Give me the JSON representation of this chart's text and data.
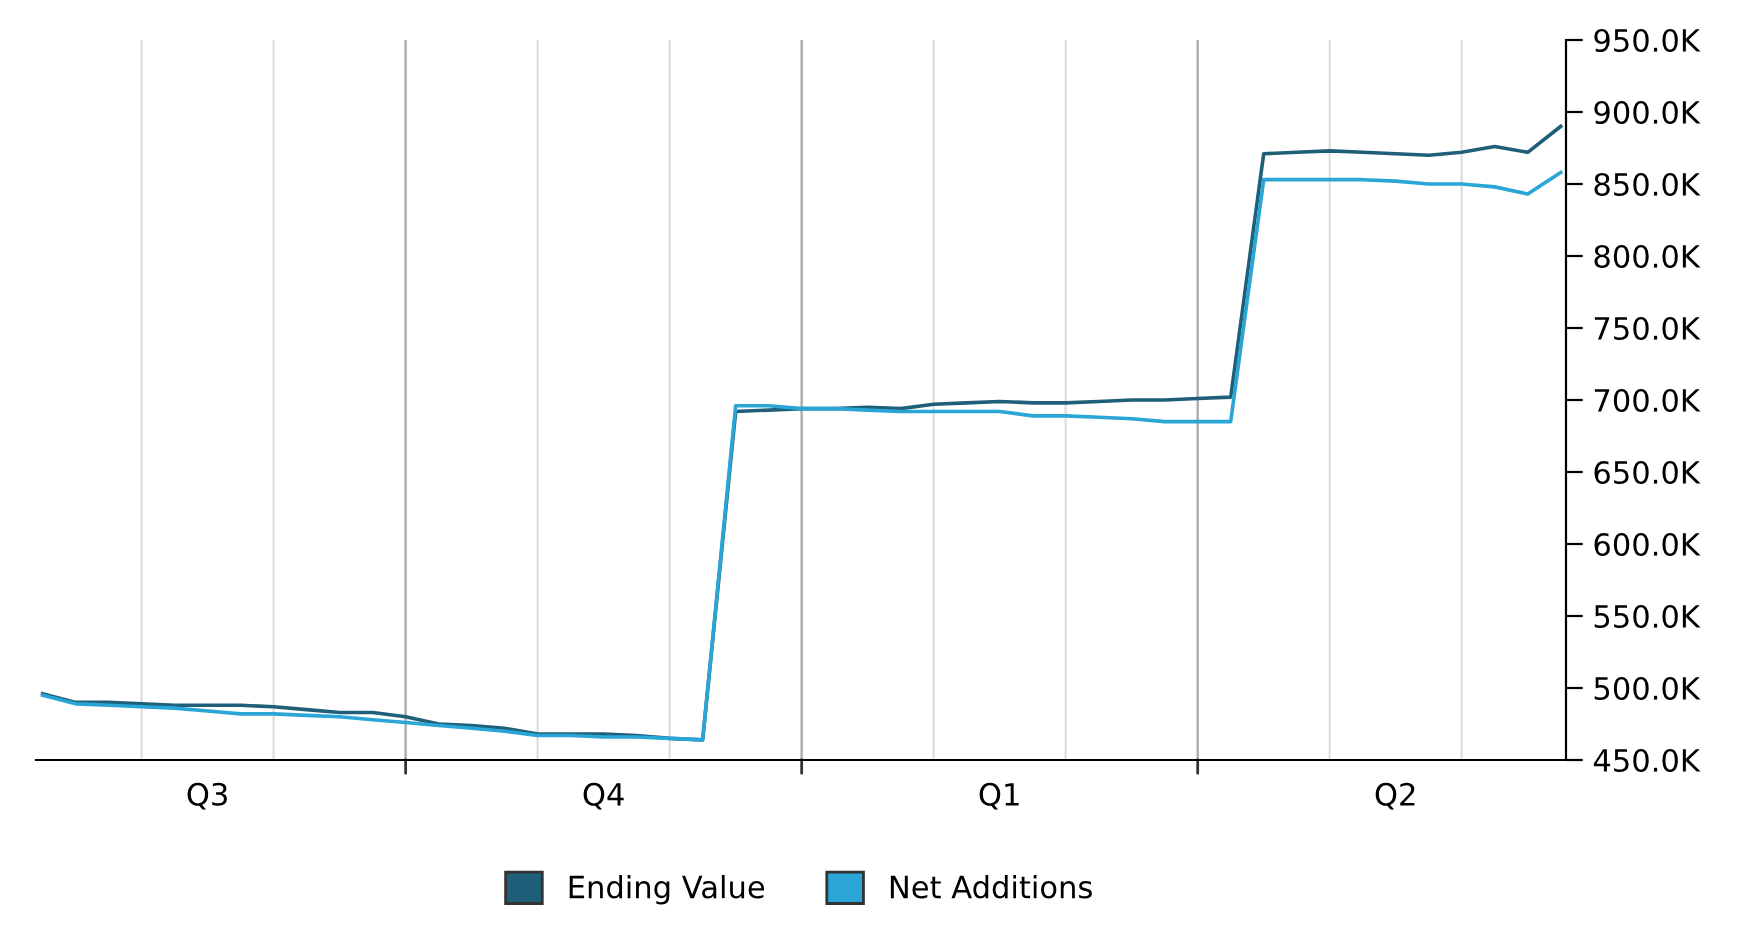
{
  "chart_data": {
    "type": "line",
    "legend": "bottom",
    "grid": "x",
    "marker": "none",
    "line_style": "solid",
    "categories": [
      null,
      null,
      null,
      null,
      null,
      "Q3",
      null,
      null,
      null,
      null,
      null,
      null,
      null,
      null,
      null,
      null,
      null,
      "Q4",
      null,
      null,
      null,
      null,
      null,
      null,
      null,
      null,
      null,
      null,
      null,
      "Q1",
      null,
      null,
      null,
      null,
      null,
      null,
      null,
      null,
      null,
      null,
      null,
      "Q2",
      null,
      null,
      null,
      null,
      null
    ],
    "ylim": [
      450000,
      950000
    ],
    "yticks": [
      {
        "value": 450000,
        "label": "450.0K"
      },
      {
        "value": 500000,
        "label": "500.0K"
      },
      {
        "value": 550000,
        "label": "550.0K"
      },
      {
        "value": 600000,
        "label": "600.0K"
      },
      {
        "value": 650000,
        "label": "650.0K"
      },
      {
        "value": 700000,
        "label": "700.0K"
      },
      {
        "value": 750000,
        "label": "750.0K"
      },
      {
        "value": 800000,
        "label": "800.0K"
      },
      {
        "value": 850000,
        "label": "850.0K"
      },
      {
        "value": 900000,
        "label": "900.0K"
      },
      {
        "value": 950000,
        "label": "950.0K"
      }
    ],
    "series": [
      {
        "name": "Ending Value",
        "color": "#1f5f7a",
        "values": [
          496000,
          490000,
          490000,
          489000,
          488000,
          488000,
          488000,
          487000,
          485000,
          483000,
          483000,
          480000,
          475000,
          474000,
          472000,
          468000,
          468000,
          468000,
          467000,
          465000,
          464000,
          692000,
          693000,
          694000,
          694000,
          695000,
          694000,
          697000,
          698000,
          699000,
          698000,
          698000,
          699000,
          700000,
          700000,
          701000,
          702000,
          871000,
          872000,
          873000,
          872000,
          871000,
          870000,
          872000,
          876000,
          872000,
          890000
        ]
      },
      {
        "name": "Net Additions",
        "color": "#29a6d6",
        "values": [
          495000,
          489000,
          488000,
          487000,
          486000,
          484000,
          482000,
          482000,
          481000,
          480000,
          478000,
          476000,
          474000,
          472000,
          470000,
          467000,
          467000,
          466000,
          466000,
          465000,
          464000,
          696000,
          696000,
          694000,
          694000,
          693000,
          692000,
          692000,
          692000,
          692000,
          689000,
          689000,
          688000,
          687000,
          685000,
          685000,
          685000,
          853000,
          853000,
          853000,
          853000,
          852000,
          850000,
          850000,
          848000,
          843000,
          858000
        ]
      }
    ]
  }
}
